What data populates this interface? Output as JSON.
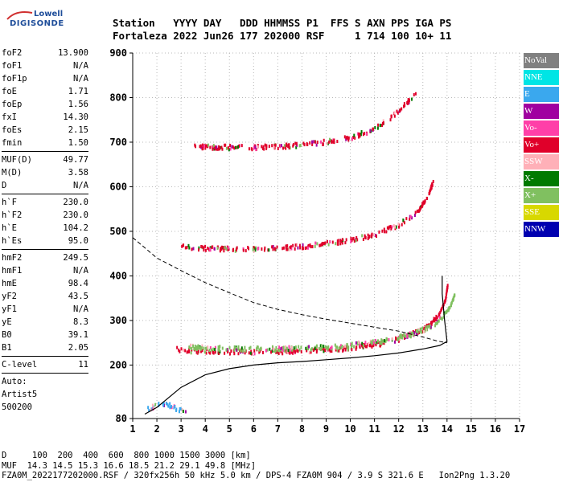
{
  "logo": {
    "line1": "Lowell",
    "line2": "DIGISONDE"
  },
  "header": {
    "line1": "Station   YYYY DAY   DDD HHMMSS P1  FFS S AXN PPS IGA PS",
    "line2": "Fortaleza 2022 Jun26 177 202000 RSF     1 714 100 10+ 11"
  },
  "params": {
    "group1": [
      {
        "label": "foF2",
        "value": "13.900"
      },
      {
        "label": "foF1",
        "value": "N/A"
      },
      {
        "label": "foF1p",
        "value": "N/A"
      },
      {
        "label": "foE",
        "value": "1.71"
      },
      {
        "label": "foEp",
        "value": "1.56"
      },
      {
        "label": "fxI",
        "value": "14.30"
      },
      {
        "label": "foEs",
        "value": "2.15"
      },
      {
        "label": "fmin",
        "value": "1.50"
      }
    ],
    "group2": [
      {
        "label": "MUF(D)",
        "value": "49.77"
      },
      {
        "label": "M(D)",
        "value": "3.58"
      },
      {
        "label": "D",
        "value": "N/A"
      }
    ],
    "group3": [
      {
        "label": "h`F",
        "value": "230.0"
      },
      {
        "label": "h`F2",
        "value": "230.0"
      },
      {
        "label": "h`E",
        "value": "104.2"
      },
      {
        "label": "h`Es",
        "value": "95.0"
      }
    ],
    "group4": [
      {
        "label": "hmF2",
        "value": "249.5"
      },
      {
        "label": "hmF1",
        "value": "N/A"
      },
      {
        "label": "hmE",
        "value": "98.4"
      },
      {
        "label": "yF2",
        "value": "43.5"
      },
      {
        "label": "yF1",
        "value": "N/A"
      },
      {
        "label": "yE",
        "value": "8.3"
      },
      {
        "label": "B0",
        "value": "39.1"
      },
      {
        "label": "B1",
        "value": "2.05"
      }
    ],
    "group5": [
      {
        "label": "C-level",
        "value": "11"
      }
    ],
    "auto": [
      "Auto:",
      "Artist5",
      "500200"
    ]
  },
  "legend": [
    {
      "label": "NoVal",
      "color": "#808080"
    },
    {
      "label": "NNE",
      "color": "#00e5e5"
    },
    {
      "label": "E",
      "color": "#3aa8ee"
    },
    {
      "label": "W",
      "color": "#a000a0"
    },
    {
      "label": "Vo-",
      "color": "#ff3fa8"
    },
    {
      "label": "Vo+",
      "color": "#e0002a"
    },
    {
      "label": "SSW",
      "color": "#ffb0b8"
    },
    {
      "label": "X-",
      "color": "#007a00"
    },
    {
      "label": "X+",
      "color": "#80c060"
    },
    {
      "label": "SSE",
      "color": "#d8d800"
    },
    {
      "label": "NNW",
      "color": "#0000b0"
    }
  ],
  "footer": {
    "line1": "D     100  200  400  600  800 1000 1500 3000 [km]",
    "line2": "MUF  14.3 14.5 15.3 16.6 18.5 21.2 29.1 49.8 [MHz]",
    "line3": "FZA0M_2022177202000.RSF / 320fx256h 50 kHz 5.0 km / DPS-4 FZA0M 904 / 3.9 S 321.6 E   Ion2Png 1.3.20"
  },
  "chart_data": {
    "type": "scatter",
    "x_unit": "MHz",
    "y_unit": "km",
    "xlim": [
      1,
      17
    ],
    "ylim": [
      80,
      900
    ],
    "x_ticks": [
      "1",
      "2",
      "3",
      "4",
      "5",
      "6",
      "7",
      "8",
      "9",
      "10",
      "11",
      "12",
      "13",
      "14",
      "15",
      "16",
      "17"
    ],
    "y_ticks": [
      "80",
      "200",
      "300",
      "400",
      "500",
      "600",
      "700",
      "800",
      "900"
    ],
    "grid": true,
    "legend_position": "right",
    "traces": [
      {
        "name": "O trace (F)",
        "color": "#e0002a",
        "points": [
          [
            2.8,
            235
          ],
          [
            3,
            233
          ],
          [
            4,
            231
          ],
          [
            5,
            230
          ],
          [
            6,
            230
          ],
          [
            7,
            230
          ],
          [
            8,
            232
          ],
          [
            9,
            234
          ],
          [
            10,
            238
          ],
          [
            11,
            245
          ],
          [
            12,
            258
          ],
          [
            13,
            280
          ],
          [
            13.6,
            308
          ],
          [
            13.9,
            345
          ],
          [
            14.0,
            380
          ]
        ]
      },
      {
        "name": "X trace (F)",
        "color": "#80c060",
        "points": [
          [
            3.3,
            240
          ],
          [
            5,
            236
          ],
          [
            7,
            236
          ],
          [
            9,
            240
          ],
          [
            11,
            250
          ],
          [
            12.5,
            268
          ],
          [
            13.5,
            290
          ],
          [
            14.1,
            330
          ],
          [
            14.3,
            360
          ]
        ]
      },
      {
        "name": "2nd hop",
        "color": "#e0002a",
        "points": [
          [
            3,
            465
          ],
          [
            4,
            462
          ],
          [
            5,
            460
          ],
          [
            6,
            460
          ],
          [
            7,
            462
          ],
          [
            8,
            466
          ],
          [
            9,
            472
          ],
          [
            10,
            480
          ],
          [
            11,
            492
          ],
          [
            12,
            515
          ],
          [
            12.8,
            545
          ],
          [
            13.2,
            580
          ],
          [
            13.4,
            612
          ]
        ]
      },
      {
        "name": "3rd hop",
        "color": "#e0002a",
        "points": [
          [
            3.5,
            690
          ],
          [
            5,
            688
          ],
          [
            6,
            688
          ],
          [
            7,
            690
          ],
          [
            8,
            694
          ],
          [
            9,
            700
          ],
          [
            10,
            710
          ],
          [
            11,
            730
          ],
          [
            12,
            770
          ],
          [
            12.7,
            810
          ]
        ]
      },
      {
        "name": "E/Es layer",
        "color": "#3aa8ee",
        "points": [
          [
            1.6,
            100
          ],
          [
            1.9,
            108
          ],
          [
            2.2,
            112
          ],
          [
            2.5,
            110
          ],
          [
            2.8,
            100
          ],
          [
            3.2,
            98
          ]
        ]
      }
    ],
    "profile_curve": [
      [
        1.5,
        90
      ],
      [
        2,
        105
      ],
      [
        3,
        150
      ],
      [
        4,
        178
      ],
      [
        5,
        192
      ],
      [
        6,
        200
      ],
      [
        7,
        205
      ],
      [
        8,
        208
      ],
      [
        9,
        212
      ],
      [
        10,
        216
      ],
      [
        11,
        221
      ],
      [
        12,
        227
      ],
      [
        13,
        236
      ],
      [
        13.7,
        244
      ],
      [
        14,
        253
      ],
      [
        13.9,
        300
      ],
      [
        13.8,
        360
      ],
      [
        13.8,
        400
      ]
    ],
    "dashed_curve": [
      [
        1,
        486
      ],
      [
        2,
        440
      ],
      [
        3,
        412
      ],
      [
        4,
        385
      ],
      [
        5,
        362
      ],
      [
        6,
        340
      ],
      [
        7,
        325
      ],
      [
        8,
        313
      ],
      [
        9,
        303
      ],
      [
        10,
        294
      ],
      [
        11,
        285
      ],
      [
        12,
        276
      ],
      [
        13,
        263
      ],
      [
        13.6,
        254
      ],
      [
        14,
        250
      ]
    ]
  }
}
